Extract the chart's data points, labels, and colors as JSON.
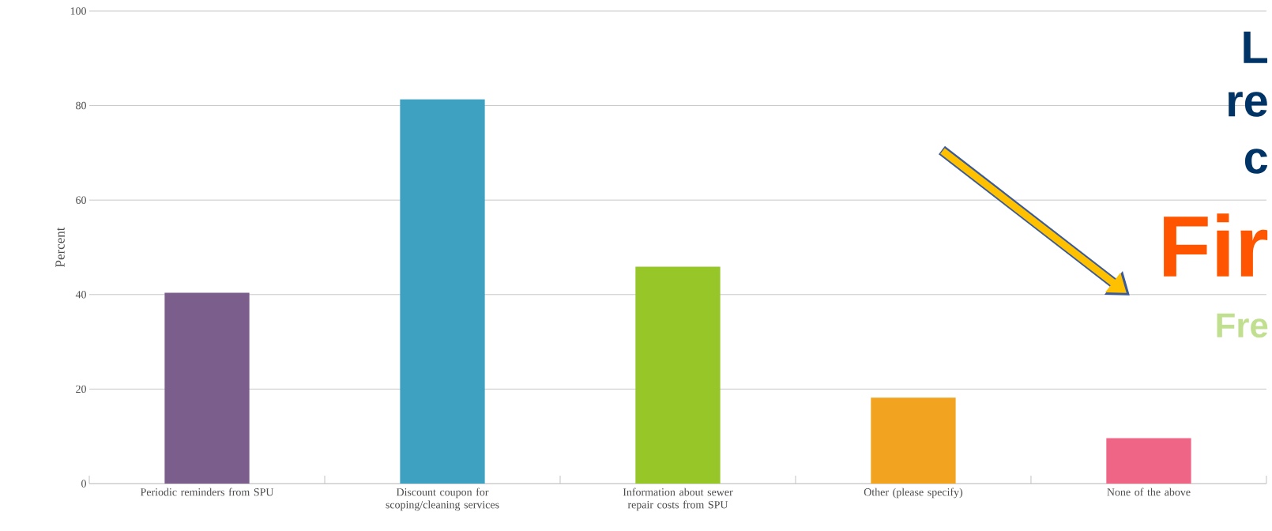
{
  "chart_data": {
    "type": "bar",
    "ylabel": "Percent",
    "categories": [
      "Periodic reminders from SPU",
      "Discount coupon for scoping/cleaning services",
      "Information about sewer repair costs from SPU",
      "Other (please specify)",
      "None of the above"
    ],
    "values": [
      40.4,
      81.3,
      45.9,
      18.2,
      9.6
    ],
    "colors": [
      "#7b5e8c",
      "#3fa1c2",
      "#96c627",
      "#f2a31f",
      "#ee6585"
    ],
    "ylim": [
      0,
      100
    ],
    "yticks": [
      0,
      20,
      40,
      60,
      80,
      100
    ],
    "grid": "y",
    "annotations": [
      "L",
      "re",
      "c",
      "Fir",
      "Fre"
    ]
  }
}
